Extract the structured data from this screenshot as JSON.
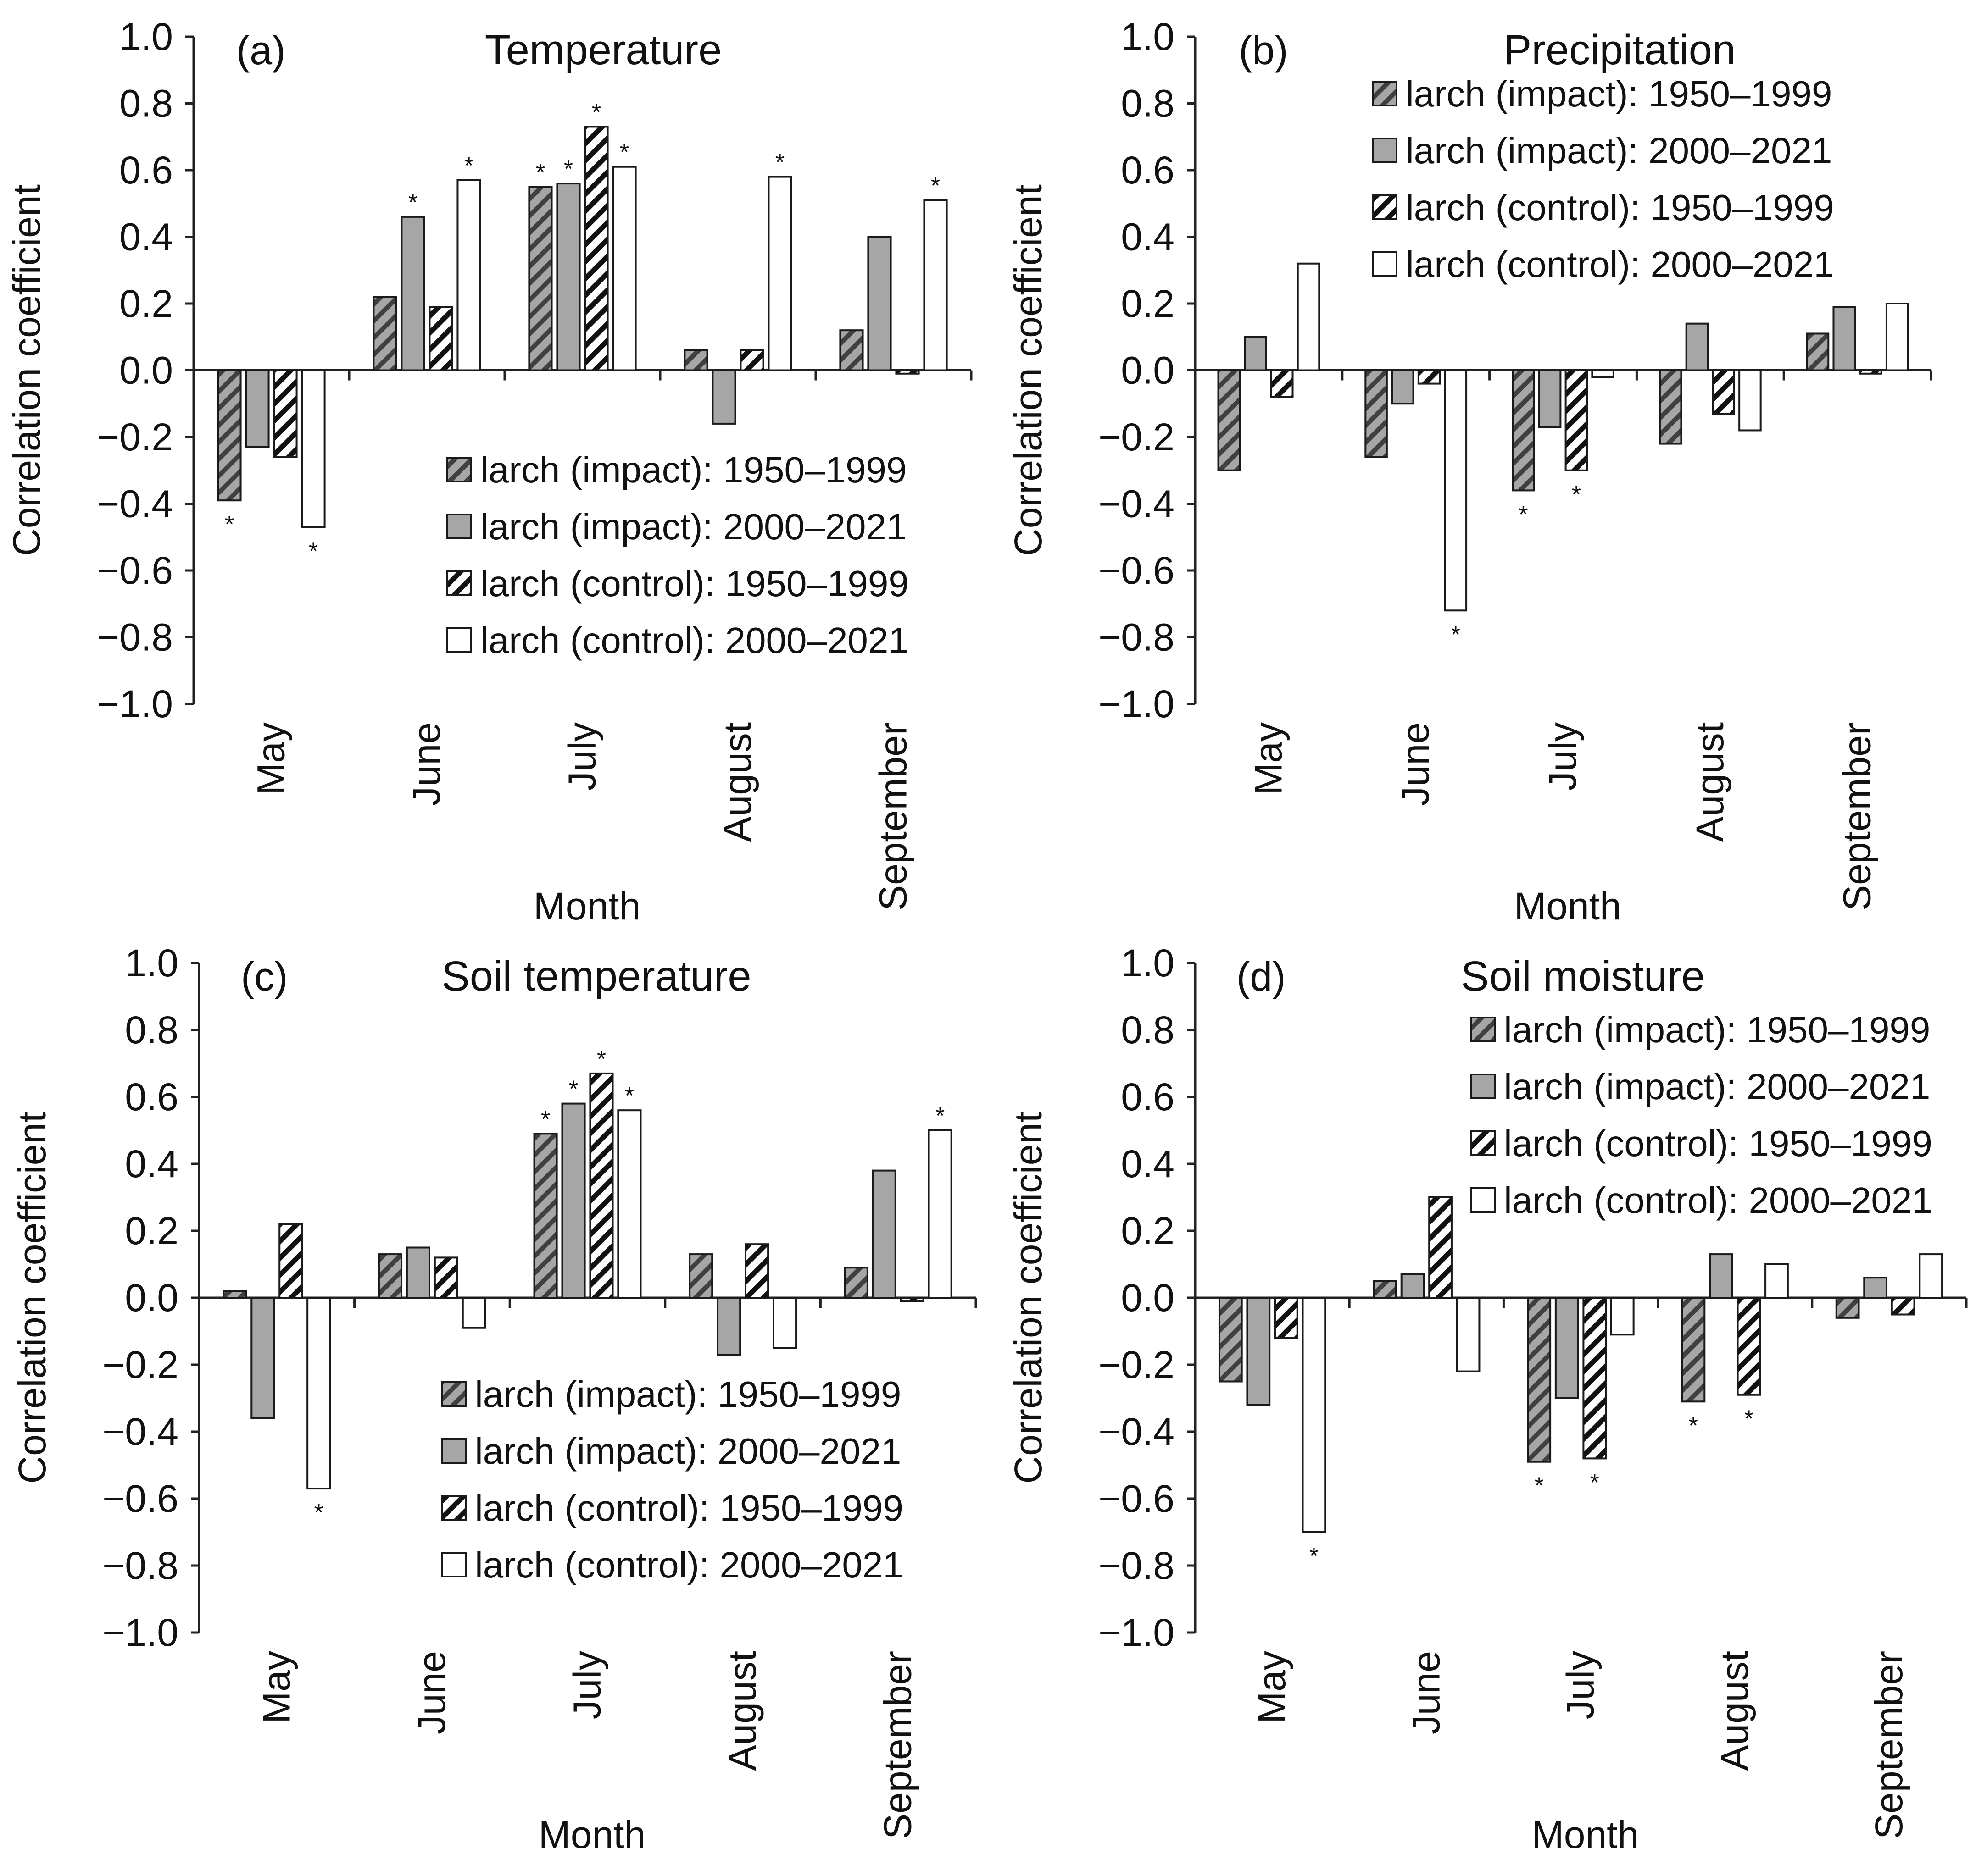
{
  "figure": {
    "colors": {
      "gray": "#a6a6a6",
      "white": "#ffffff",
      "outline": "#1a1a1a",
      "stripe_dark": "#404040"
    },
    "series": [
      {
        "name": "larch (impact): 1950–1999",
        "style": "hatch-gray"
      },
      {
        "name": "larch (impact): 2000–2021",
        "style": "gray"
      },
      {
        "name": "larch (control): 1950–1999",
        "style": "hatch-white"
      },
      {
        "name": "larch (control): 2000–2021",
        "style": "white"
      }
    ]
  },
  "chart_data": [
    {
      "type": "bar",
      "letter": "(a)",
      "title": "Temperature",
      "xlabel": "Month",
      "ylabel": "Correlation coefficient",
      "ylim": [
        -1.0,
        1.0
      ],
      "yticks": [
        "1.0",
        "0.8",
        "0.6",
        "0.4",
        "0.2",
        "0.0",
        "−0.2",
        "−0.4",
        "−0.6",
        "−0.8",
        "−1.0"
      ],
      "categories": [
        "May",
        "June",
        "July",
        "August",
        "September"
      ],
      "legend_position": "lower-right",
      "series": [
        {
          "name": "larch (impact): 1950–1999",
          "values": [
            -0.39,
            0.22,
            0.55,
            0.06,
            0.12
          ],
          "significant": [
            true,
            false,
            true,
            false,
            false
          ]
        },
        {
          "name": "larch (impact): 2000–2021",
          "values": [
            -0.23,
            0.46,
            0.56,
            -0.16,
            0.4
          ],
          "significant": [
            false,
            true,
            true,
            false,
            false
          ]
        },
        {
          "name": "larch (control): 1950–1999",
          "values": [
            -0.26,
            0.19,
            0.73,
            0.06,
            -0.01
          ],
          "significant": [
            false,
            false,
            true,
            false,
            false
          ]
        },
        {
          "name": "larch (control): 2000–2021",
          "values": [
            -0.47,
            0.57,
            0.61,
            0.58,
            0.51
          ],
          "significant": [
            true,
            true,
            true,
            true,
            true
          ]
        }
      ]
    },
    {
      "type": "bar",
      "letter": "(b)",
      "title": "Precipitation",
      "xlabel": "Month",
      "ylabel": "Correlation coefficient",
      "ylim": [
        -1.0,
        1.0
      ],
      "yticks": [
        "1.0",
        "0.8",
        "0.6",
        "0.4",
        "0.2",
        "0.0",
        "−0.2",
        "−0.4",
        "−0.6",
        "−0.8",
        "−1.0"
      ],
      "categories": [
        "May",
        "June",
        "July",
        "August",
        "September"
      ],
      "legend_position": "upper-right",
      "series": [
        {
          "name": "larch (impact): 1950–1999",
          "values": [
            -0.3,
            -0.26,
            -0.36,
            -0.22,
            0.11
          ],
          "significant": [
            false,
            false,
            true,
            false,
            false
          ]
        },
        {
          "name": "larch (impact): 2000–2021",
          "values": [
            0.1,
            -0.1,
            -0.17,
            0.14,
            0.19
          ],
          "significant": [
            false,
            false,
            false,
            false,
            false
          ]
        },
        {
          "name": "larch (control): 1950–1999",
          "values": [
            -0.08,
            -0.04,
            -0.3,
            -0.13,
            -0.01
          ],
          "significant": [
            false,
            false,
            true,
            false,
            false
          ]
        },
        {
          "name": "larch (control): 2000–2021",
          "values": [
            0.32,
            -0.72,
            -0.02,
            -0.18,
            0.2
          ],
          "significant": [
            false,
            true,
            false,
            false,
            false
          ]
        }
      ]
    },
    {
      "type": "bar",
      "letter": "(c)",
      "title": "Soil temperature",
      "xlabel": "Month",
      "ylabel": "Correlation coefficient",
      "ylim": [
        -1.0,
        1.0
      ],
      "yticks": [
        "1.0",
        "0.8",
        "0.6",
        "0.4",
        "0.2",
        "0.0",
        "−0.2",
        "−0.4",
        "−0.6",
        "−0.8",
        "−1.0"
      ],
      "categories": [
        "May",
        "June",
        "July",
        "August",
        "September"
      ],
      "legend_position": "lower-right",
      "series": [
        {
          "name": "larch (impact): 1950–1999",
          "values": [
            0.02,
            0.13,
            0.49,
            0.13,
            0.09
          ],
          "significant": [
            false,
            false,
            true,
            false,
            false
          ]
        },
        {
          "name": "larch (impact): 2000–2021",
          "values": [
            -0.36,
            0.15,
            0.58,
            -0.17,
            0.38
          ],
          "significant": [
            false,
            false,
            true,
            false,
            false
          ]
        },
        {
          "name": "larch (control): 1950–1999",
          "values": [
            0.22,
            0.12,
            0.67,
            0.16,
            -0.01
          ],
          "significant": [
            false,
            false,
            true,
            false,
            false
          ]
        },
        {
          "name": "larch (control): 2000–2021",
          "values": [
            -0.57,
            -0.09,
            0.56,
            -0.15,
            0.5
          ],
          "significant": [
            true,
            false,
            true,
            false,
            true
          ]
        }
      ]
    },
    {
      "type": "bar",
      "letter": "(d)",
      "title": "Soil moisture",
      "xlabel": "Month",
      "ylabel": "Correlation coefficient",
      "ylim": [
        -1.0,
        1.0
      ],
      "yticks": [
        "1.0",
        "0.8",
        "0.6",
        "0.4",
        "0.2",
        "0.0",
        "−0.2",
        "−0.4",
        "−0.6",
        "−0.8",
        "−1.0"
      ],
      "categories": [
        "May",
        "June",
        "July",
        "August",
        "September"
      ],
      "legend_position": "upper-right",
      "series": [
        {
          "name": "larch (impact): 1950–1999",
          "values": [
            -0.25,
            0.05,
            -0.49,
            -0.31,
            -0.06
          ],
          "significant": [
            false,
            false,
            true,
            true,
            false
          ]
        },
        {
          "name": "larch (impact): 2000–2021",
          "values": [
            -0.32,
            0.07,
            -0.3,
            0.13,
            0.06
          ],
          "significant": [
            false,
            false,
            false,
            false,
            false
          ]
        },
        {
          "name": "larch (control): 1950–1999",
          "values": [
            -0.12,
            0.3,
            -0.48,
            -0.29,
            -0.05
          ],
          "significant": [
            false,
            false,
            true,
            true,
            false
          ]
        },
        {
          "name": "larch (control): 2000–2021",
          "values": [
            -0.7,
            -0.22,
            -0.11,
            0.1,
            0.13
          ],
          "significant": [
            true,
            false,
            false,
            false,
            false
          ]
        }
      ]
    }
  ]
}
